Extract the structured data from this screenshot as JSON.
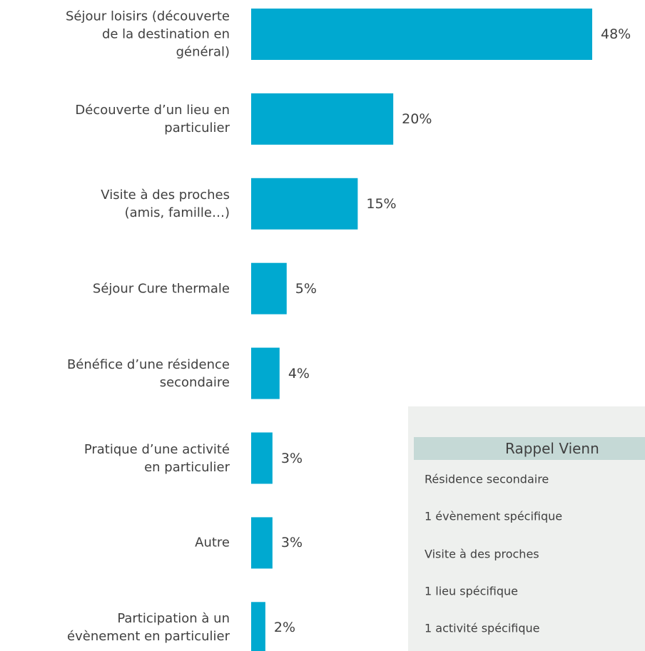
{
  "chart_data": {
    "type": "bar",
    "orientation": "horizontal",
    "categories": [
      "Séjour loisirs (découverte\nde la destination en\ngénéral)",
      "Découverte d’un lieu en\nparticulier",
      "Visite à des proches\n(amis, famille…)",
      "Séjour Cure thermale",
      "Bénéfice d’une résidence\nsecondaire",
      "Pratique d’une activité\nen particulier",
      "Autre",
      "Participation à un\névènement en particulier"
    ],
    "values": [
      48,
      20,
      15,
      5,
      4,
      3,
      3,
      2
    ],
    "value_labels": [
      "48%",
      "20%",
      "15%",
      "5%",
      "4%",
      "3%",
      "3%",
      "2%"
    ],
    "color": "#00a9d0"
  },
  "panel": {
    "title": "Rappel Vienn",
    "items": [
      "Résidence secondaire",
      "1 évènement spécifique",
      "Visite à des proches",
      "1 lieu spécifique",
      "1 activité spécifique"
    ]
  }
}
